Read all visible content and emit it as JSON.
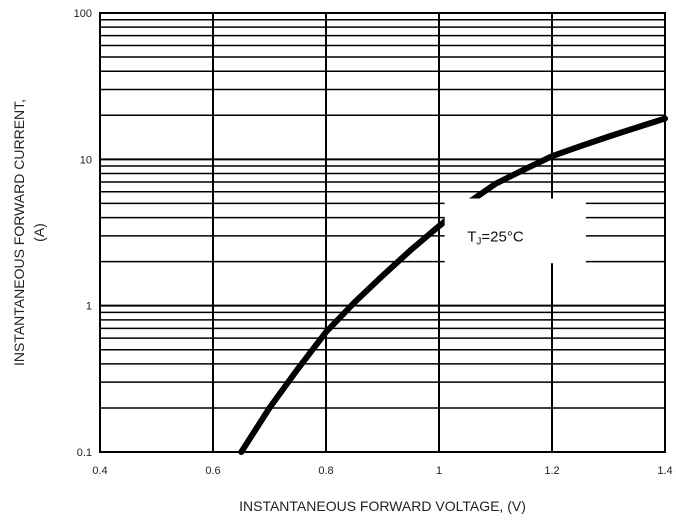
{
  "chart_data": {
    "type": "line",
    "xlabel": "INSTANTANEOUS FORWARD VOLTAGE, (V)",
    "ylabel_line1": "INSTANTANEOUS FORWARD CURRENT,",
    "ylabel_line2": "(A)",
    "xlim": [
      0.4,
      1.4
    ],
    "ylim": [
      0.1,
      100
    ],
    "y_scale": "log",
    "grid": true,
    "x_ticks": [
      "0.4",
      "0.6",
      "0.8",
      "1",
      "1.2",
      "1.4"
    ],
    "y_ticks": [
      "0.1",
      "1",
      "10",
      "100"
    ],
    "annotation": {
      "main": "T",
      "sub": "J",
      "rest": "=25°C"
    },
    "series": [
      {
        "x": [
          0.65,
          0.7,
          0.75,
          0.8,
          0.85,
          0.9,
          0.95,
          1.0,
          1.05,
          1.1,
          1.15,
          1.2,
          1.25,
          1.3,
          1.35,
          1.4
        ],
        "y": [
          0.1,
          0.2,
          0.37,
          0.66,
          1.05,
          1.6,
          2.4,
          3.5,
          5.0,
          6.8,
          8.5,
          10.5,
          12.3,
          14.3,
          16.5,
          19.0
        ]
      }
    ]
  }
}
